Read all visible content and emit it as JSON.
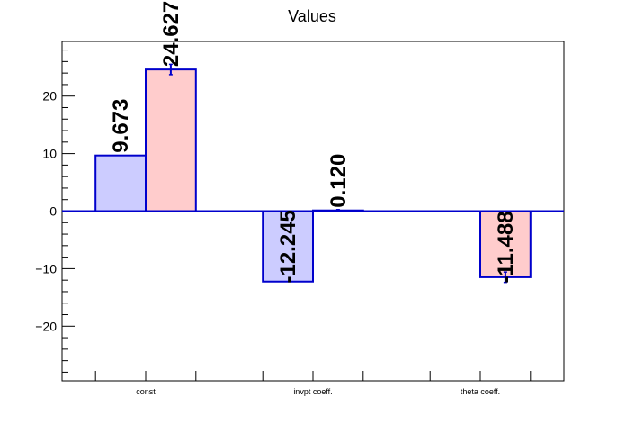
{
  "chart_data": {
    "type": "bar",
    "title": "Values",
    "xlabel": "",
    "ylabel": "",
    "categories": [
      "const",
      "invpt coeff.",
      "theta coeff."
    ],
    "ylim": [
      -29.5,
      29.5
    ],
    "yticks": [
      -20,
      -10,
      0,
      10,
      20
    ],
    "grid": false,
    "series": [
      {
        "color": "#ccccff",
        "values": [
          9.673,
          -12.245,
          null
        ],
        "errors": [
          0,
          0,
          0
        ],
        "labels": [
          "9.673",
          "-12.245",
          ""
        ]
      },
      {
        "color": "#ffcccc",
        "values": [
          24.627,
          0.12,
          -11.488
        ],
        "errors": [
          0.9,
          0.15,
          0.9
        ],
        "labels": [
          "24.627",
          "0.120",
          "-11.488"
        ]
      }
    ],
    "edge_color": "#0000cc"
  }
}
